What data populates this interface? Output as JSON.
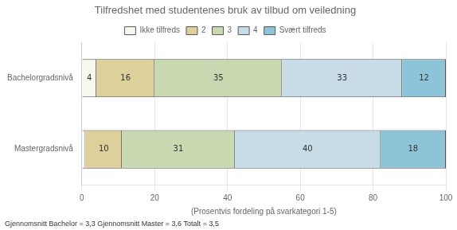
{
  "chart_data": {
    "type": "bar",
    "orientation": "horizontal",
    "stacked": true,
    "title": "Tilfredshet med studentenes bruk av tilbud om veiledning",
    "xlabel": "(Prosentvis fordeling på svarkategori 1-5)",
    "annotations": [
      "Gjennomsnitt Bachelor = 3,3 Gjennomsnitt Master = 3,6 Totalt = 3,5"
    ],
    "categories": [
      "Bachelorgradsnivå",
      "Mastergradsnivå"
    ],
    "series": [
      {
        "name": "Ikke tilfreds",
        "color": "#f8f8ee",
        "values": [
          4,
          1
        ],
        "value_labels": [
          "4",
          null
        ]
      },
      {
        "name": "2",
        "color": "#ddd09a",
        "values": [
          16,
          10
        ]
      },
      {
        "name": "3",
        "color": "#c8d8b0",
        "values": [
          35,
          31
        ]
      },
      {
        "name": "4",
        "color": "#c8dce8",
        "values": [
          33,
          40
        ]
      },
      {
        "name": "Svært tilfreds",
        "color": "#8ec4d8",
        "values": [
          12,
          18
        ]
      }
    ],
    "xlim": [
      0,
      100
    ],
    "xticks": [
      0,
      20,
      40,
      60,
      80,
      100
    ],
    "grid": true,
    "legend": "top",
    "data_labels": true
  }
}
